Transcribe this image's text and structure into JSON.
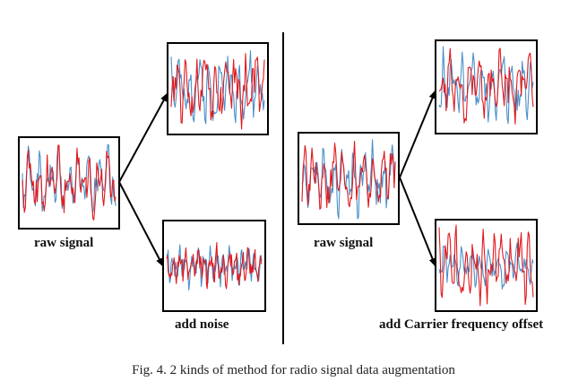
{
  "figure": {
    "left_panel": {
      "raw_label": "raw signal",
      "bottom_label": "add noise"
    },
    "right_panel": {
      "raw_label": "raw signal",
      "bottom_label": "add Carrier frequency offset"
    },
    "colors": {
      "signal_red": "#e0191e",
      "signal_blue": "#4a90c8",
      "frame": "#000000"
    }
  },
  "caption": "Fig. 4.  2 kinds of method for radio signal data augmentation"
}
